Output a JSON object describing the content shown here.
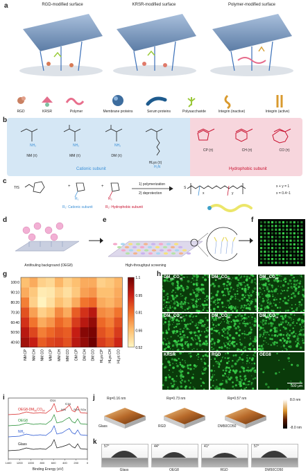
{
  "panel_labels": {
    "a": "a",
    "b": "b",
    "c": "c",
    "d": "d",
    "e": "e",
    "f": "f",
    "g": "g",
    "h": "h",
    "i": "i",
    "j": "j",
    "k": "k"
  },
  "panel_a": {
    "titles": [
      "RGD-modified surface",
      "KRSR-modified surface",
      "Polymer-modified surface"
    ],
    "legend": [
      "RGD",
      "KRSR",
      "Polymer",
      "Membrane proteins",
      "Serum proteins",
      "Polysaccharide",
      "Integrin (inactive)",
      "Integrin (active)"
    ]
  },
  "panel_b": {
    "cationic": [
      "NM (±)",
      "MM (±)",
      "DM (±)",
      "HLys (±)"
    ],
    "hydrophobic": [
      "CP (±)",
      "CH (±)",
      "CO (±)"
    ],
    "cationic_label": "Cationic subunit",
    "hydrophobic_label": "Hydrophobic subunit",
    "nh2": "NH₂",
    "h2n": "H₂N"
  },
  "panel_c": {
    "tfs": "TfS",
    "plus1": "+",
    "plus2": "+",
    "step1": "1) polymerization",
    "step2": "2) deprotection",
    "r1": "R₁",
    "r2": "R₂",
    "r1_desc": "R₁: Cationic subunit",
    "r2_desc": "R₂: Hydrophobic subunit",
    "xy": "x + y = 1",
    "xrange": "x = 0.4~1",
    "sh": "S",
    "x": "x",
    "y": "y"
  },
  "panel_d": {
    "caption": "Antifouling background (OEG8)"
  },
  "panel_e": {
    "caption": "High-throughput screening"
  },
  "panel_g": {
    "rows": [
      "100:0",
      "90:10",
      "80:20",
      "70:30",
      "60:40",
      "50:50",
      "40:60"
    ],
    "cols": [
      "NM:CP",
      "NM:CH",
      "NM:CO",
      "MM:CP",
      "MM:CH",
      "MM:CO",
      "DM:CP",
      "DM:CH",
      "DM:CO",
      "HLys:CP",
      "HLys:CH",
      "HLys:CO"
    ],
    "colorbar_ticks": [
      "1.1",
      "0.95",
      "0.81",
      "0.66",
      "0.52"
    ],
    "values": [
      [
        0.66,
        0.7,
        0.62,
        0.6,
        0.68,
        0.62,
        0.66,
        0.7,
        0.7,
        0.62,
        0.64,
        0.68
      ],
      [
        0.7,
        0.64,
        0.55,
        0.56,
        0.62,
        0.58,
        0.64,
        0.72,
        0.74,
        0.66,
        0.66,
        0.7
      ],
      [
        0.78,
        0.62,
        0.53,
        0.58,
        0.66,
        0.62,
        0.7,
        0.8,
        0.82,
        0.7,
        0.68,
        0.72
      ],
      [
        0.86,
        0.72,
        0.62,
        0.66,
        0.76,
        0.7,
        0.84,
        0.92,
        0.98,
        0.76,
        0.74,
        0.8
      ],
      [
        0.92,
        0.8,
        0.7,
        0.74,
        0.82,
        0.78,
        0.9,
        0.98,
        1.04,
        0.82,
        0.78,
        0.86
      ],
      [
        0.98,
        0.88,
        0.78,
        0.82,
        0.86,
        0.84,
        0.96,
        1.06,
        1.08,
        0.86,
        0.82,
        0.9
      ],
      [
        1.02,
        0.96,
        0.84,
        0.88,
        0.9,
        0.86,
        0.98,
        1.04,
        1.1,
        0.9,
        0.86,
        0.94
      ]
    ]
  },
  "panel_h": {
    "images": [
      {
        "main": "DM",
        "s1": "60",
        "mid": "CO",
        "s2": "40"
      },
      {
        "main": "DM",
        "s1": "50",
        "mid": "CO",
        "s2": "50"
      },
      {
        "main": "DM",
        "s1": "40",
        "mid": "CO",
        "s2": "60"
      },
      {
        "main": "DM",
        "s1": "70",
        "mid": "CO",
        "s2": "30"
      },
      {
        "main": "DM",
        "s1": "80",
        "mid": "CO",
        "s2": "20"
      },
      {
        "main": "DM",
        "s1": "90",
        "mid": "CO",
        "s2": "10"
      },
      {
        "main": "KRSR"
      },
      {
        "main": "RGD"
      },
      {
        "main": "OEG8"
      }
    ],
    "scalebar": "500 μm"
  },
  "panel_i": {
    "labels": [
      "OEG8-DM",
      "50",
      "CO",
      "50",
      "OEG8",
      "NH",
      "2",
      "Glass"
    ],
    "peaks": [
      "O1s",
      "C1s",
      "N1s",
      "Si2s",
      "Si2p"
    ],
    "xlabel": "Binding Energy (eV)",
    "xticks": [
      "1400",
      "1200",
      "1000",
      "800",
      "600",
      "400",
      "200",
      "0"
    ],
    "series_colors": [
      "#d62020",
      "#1a8a2a",
      "#1f4fd0",
      "#111111"
    ]
  },
  "panel_j": {
    "rq": [
      "Rq=0.16 nm",
      "Rq=0.73 nm",
      "Rq=0.57 nm"
    ],
    "names": [
      "Glass",
      "RGD",
      "DM50CO50"
    ],
    "colorbar": [
      "8.0 nm",
      "-8.0 nm"
    ]
  },
  "panel_k": {
    "angles": [
      "57°",
      "44°",
      "41°",
      "57°"
    ],
    "names": [
      "Glass",
      "OEG8",
      "RGD",
      "DM50CO50"
    ]
  },
  "colors": {
    "cationic_blue": "#3a8fd6",
    "hydrophobic_red": "#c8102e",
    "heat_low": "#fff3c4",
    "heat_high": "#7a0000",
    "fluor_green": "#39d04a"
  }
}
